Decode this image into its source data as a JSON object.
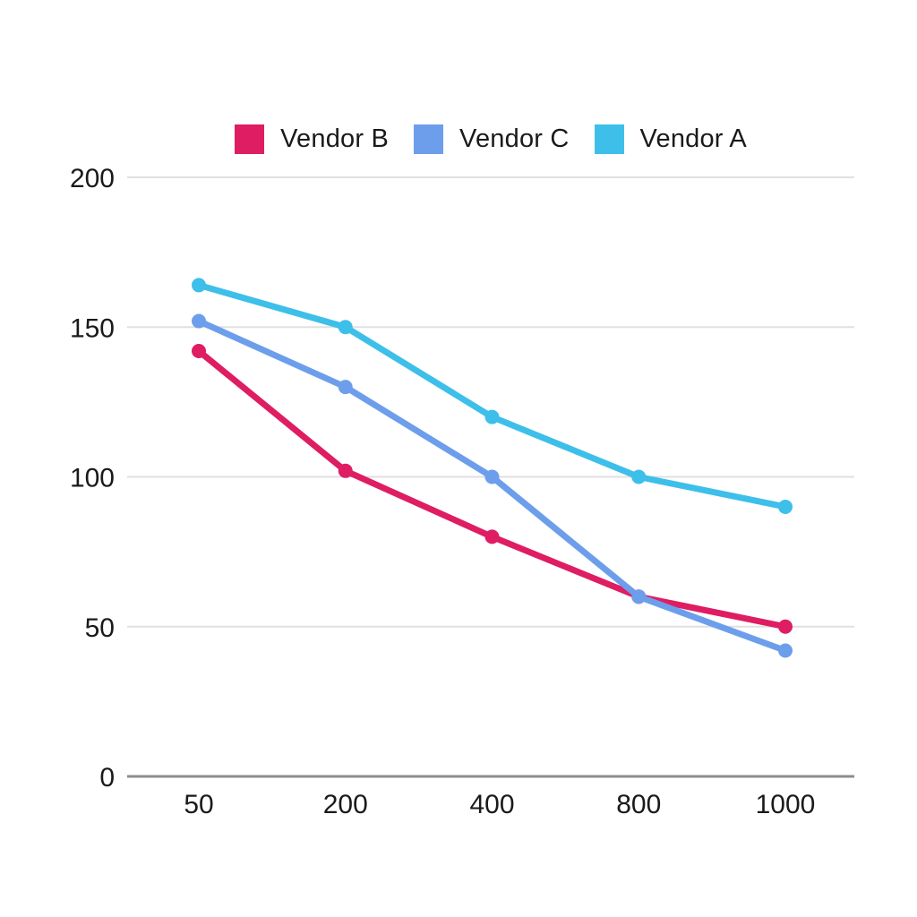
{
  "chart_data": {
    "type": "line",
    "x_scale": "categorical",
    "x": [
      "50",
      "200",
      "400",
      "800",
      "1000"
    ],
    "series": [
      {
        "name": "Vendor B",
        "color": "#DE1D62",
        "values": [
          142,
          102,
          80,
          60,
          50
        ]
      },
      {
        "name": "Vendor C",
        "color": "#6D9EEB",
        "values": [
          152,
          130,
          100,
          60,
          42
        ]
      },
      {
        "name": "Vendor A",
        "color": "#3DBFEA",
        "values": [
          164,
          150,
          120,
          100,
          90
        ]
      }
    ],
    "title": "",
    "xlabel": "",
    "ylabel": "",
    "ylim": [
      0,
      200
    ],
    "yticks": [
      0,
      50,
      100,
      150,
      200
    ],
    "grid": true,
    "legend_position": "top-center",
    "marker": "circle"
  },
  "colors": {
    "background": "#FFFFFF",
    "gridline": "#E0E0E0",
    "axis_line": "#8C8C8C",
    "text": "#1A1A1A"
  }
}
